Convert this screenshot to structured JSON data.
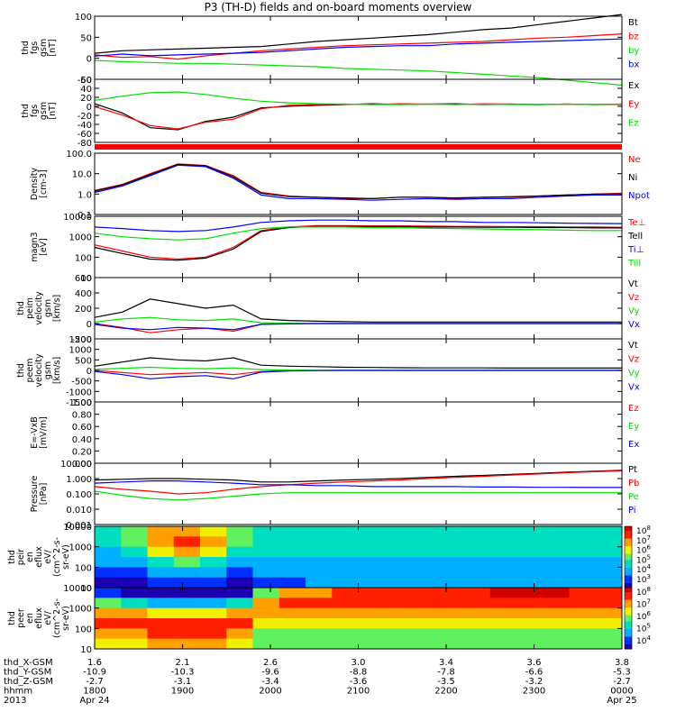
{
  "title": "P3 (TH-D) fields and on-board moments overview",
  "footer": {
    "rows": [
      {
        "label": "thd_X-GSM",
        "values": [
          "1.6",
          "2.1",
          "2.6",
          "3.0",
          "3.4",
          "3.6",
          "3.8"
        ]
      },
      {
        "label": "thd_Y-GSM",
        "values": [
          "-10.9",
          "-10.3",
          "-9.6",
          "-8.8",
          "-7.8",
          "-6.6",
          "-5.3"
        ]
      },
      {
        "label": "thd_Z-GSM",
        "values": [
          "-2.7",
          "-3.1",
          "-3.4",
          "-3.6",
          "-3.5",
          "-3.2",
          "-2.7"
        ]
      },
      {
        "label": "hhmm",
        "values": [
          "1800",
          "1900",
          "2000",
          "2100",
          "2200",
          "2300",
          "0000"
        ]
      },
      {
        "label": "2013",
        "values": [
          "Apr 24",
          "",
          "",
          "",
          "",
          "",
          "Apr 25"
        ]
      }
    ]
  },
  "colors": {
    "black": "#000000",
    "red": "#ff0000",
    "green": "#00e000",
    "blue": "#0000ff"
  },
  "chart_data": [
    {
      "type": "line",
      "ylabel": [
        "thd",
        "fgs",
        "gsm",
        "[nT]"
      ],
      "ylim": [
        -50,
        100
      ],
      "yticks": [
        "100",
        "50",
        "0",
        "-50"
      ],
      "series": [
        {
          "name": "Bt",
          "color": "black",
          "values": [
            12,
            18,
            20,
            22,
            24,
            26,
            28,
            34,
            40,
            44,
            48,
            52,
            56,
            62,
            68,
            72,
            80,
            88,
            96,
            104
          ]
        },
        {
          "name": "bz",
          "color": "red",
          "values": [
            8,
            2,
            4,
            -2,
            6,
            12,
            18,
            22,
            26,
            30,
            32,
            34,
            36,
            38,
            40,
            44,
            48,
            50,
            54,
            58
          ]
        },
        {
          "name": "by",
          "color": "green",
          "values": [
            -5,
            -8,
            -10,
            -12,
            -12,
            -14,
            -16,
            -18,
            -20,
            -24,
            -26,
            -28,
            -30,
            -34,
            -38,
            -42,
            -46,
            -52,
            -58,
            -64
          ]
        },
        {
          "name": "bx",
          "color": "blue",
          "values": [
            5,
            10,
            6,
            8,
            10,
            12,
            14,
            18,
            22,
            26,
            28,
            30,
            30,
            34,
            36,
            38,
            40,
            42,
            44,
            46
          ]
        }
      ]
    },
    {
      "type": "line",
      "ylabel": [
        "thd",
        "fgs",
        "gsm",
        "[nT]"
      ],
      "ylim": [
        -90,
        60
      ],
      "yticks": [
        "60",
        "40",
        "20",
        "0",
        "-20",
        "-40",
        "-60",
        "-80"
      ],
      "series": [
        {
          "name": "Ex",
          "color": "black",
          "values": [
            2,
            -20,
            -55,
            -60,
            -40,
            -30,
            -8,
            -4,
            -2,
            0,
            2,
            0,
            1,
            2,
            0,
            1,
            0,
            1,
            0,
            1
          ]
        },
        {
          "name": "Ey",
          "color": "red",
          "values": [
            -5,
            -25,
            -50,
            -58,
            -42,
            -35,
            -10,
            -2,
            0,
            1,
            0,
            2,
            1,
            0,
            2,
            1,
            0,
            1,
            0,
            0
          ]
        },
        {
          "name": "Ez",
          "color": "green",
          "values": [
            10,
            20,
            28,
            30,
            24,
            15,
            8,
            4,
            2,
            1,
            0,
            0,
            1,
            0,
            1,
            0,
            0,
            1,
            0,
            1
          ]
        }
      ]
    },
    {
      "type": "line",
      "ylabel": [
        "Density",
        "[cm-3]"
      ],
      "ylim": [
        0.1,
        100
      ],
      "scale": "log",
      "yticks": [
        "100.0",
        "10.0",
        "1.0",
        "0.1"
      ],
      "series": [
        {
          "name": "Ne",
          "color": "red",
          "values": [
            1.5,
            3,
            10,
            30,
            25,
            8,
            1.2,
            0.8,
            0.7,
            0.6,
            0.6,
            0.7,
            0.7,
            0.6,
            0.7,
            0.7,
            0.8,
            0.9,
            1.0,
            1.1
          ]
        },
        {
          "name": "Ni",
          "color": "black",
          "values": [
            1.4,
            2.8,
            9,
            28,
            24,
            7,
            1.1,
            0.75,
            0.7,
            0.65,
            0.6,
            0.7,
            0.7,
            0.65,
            0.7,
            0.75,
            0.8,
            0.9,
            1.0,
            1.0
          ]
        },
        {
          "name": "Npot",
          "color": "blue",
          "values": [
            1.2,
            2.5,
            8,
            26,
            22,
            6,
            0.9,
            0.6,
            0.6,
            0.55,
            0.5,
            0.55,
            0.6,
            0.55,
            0.6,
            0.6,
            0.7,
            0.8,
            0.9,
            0.9
          ]
        }
      ]
    },
    {
      "type": "line",
      "ylabel": [
        "magn3",
        "[eV]"
      ],
      "ylim": [
        10,
        10000
      ],
      "scale": "log",
      "yticks": [
        "10000",
        "1000",
        "100",
        "10"
      ],
      "series": [
        {
          "name": "Te⊥",
          "color": "red",
          "values": [
            400,
            200,
            100,
            80,
            100,
            300,
            2000,
            3000,
            3500,
            3500,
            3400,
            3400,
            3300,
            3200,
            3200,
            3100,
            3100,
            3000,
            3000,
            2900
          ]
        },
        {
          "name": "Tell",
          "color": "black",
          "values": [
            300,
            150,
            80,
            70,
            90,
            250,
            1800,
            2800,
            3200,
            3200,
            3100,
            3100,
            3000,
            3000,
            2900,
            2900,
            2800,
            2800,
            2700,
            2700
          ]
        },
        {
          "name": "Ti⊥",
          "color": "blue",
          "values": [
            3000,
            2500,
            2000,
            1800,
            2000,
            3000,
            5000,
            6000,
            6500,
            6500,
            6000,
            6000,
            5500,
            5500,
            5000,
            5000,
            4800,
            4600,
            4500,
            4400
          ]
        },
        {
          "name": "Till",
          "color": "green",
          "values": [
            1500,
            1000,
            800,
            700,
            800,
            1500,
            2500,
            3000,
            3000,
            3000,
            2800,
            2800,
            2600,
            2500,
            2400,
            2300,
            2200,
            2100,
            2000,
            2000
          ]
        }
      ]
    },
    {
      "type": "line",
      "ylabel": [
        "thd",
        "peim",
        "velocity",
        "gsm",
        "[km/s]"
      ],
      "ylim": [
        -200,
        600
      ],
      "yticks": [
        "600",
        "400",
        "200",
        "0",
        "-200"
      ],
      "series": [
        {
          "name": "Vt",
          "color": "black",
          "values": [
            80,
            150,
            320,
            260,
            200,
            240,
            60,
            40,
            30,
            25,
            20,
            20,
            20,
            20,
            20,
            20,
            20,
            20,
            20,
            20
          ]
        },
        {
          "name": "Vz",
          "color": "red",
          "values": [
            0,
            -50,
            -120,
            -80,
            -60,
            -100,
            -10,
            0,
            0,
            0,
            0,
            0,
            0,
            0,
            0,
            0,
            0,
            0,
            0,
            0
          ]
        },
        {
          "name": "Vy",
          "color": "green",
          "values": [
            20,
            60,
            80,
            50,
            40,
            60,
            10,
            5,
            0,
            0,
            0,
            0,
            0,
            0,
            0,
            0,
            0,
            0,
            0,
            0
          ]
        },
        {
          "name": "Vx",
          "color": "blue",
          "values": [
            -10,
            -60,
            -80,
            -50,
            -60,
            -80,
            -10,
            -5,
            0,
            0,
            0,
            0,
            0,
            0,
            0,
            0,
            0,
            0,
            0,
            0
          ]
        }
      ]
    },
    {
      "type": "line",
      "ylabel": [
        "thd",
        "peem",
        "velocity",
        "gsm",
        "[km/s]"
      ],
      "ylim": [
        -1500,
        1500
      ],
      "yticks": [
        "1500",
        "1000",
        "500",
        "0",
        "-500",
        "-1000",
        "-1500"
      ],
      "series": [
        {
          "name": "Vt",
          "color": "black",
          "values": [
            200,
            400,
            600,
            500,
            450,
            600,
            250,
            200,
            180,
            150,
            140,
            130,
            120,
            120,
            120,
            110,
            110,
            110,
            110,
            110
          ]
        },
        {
          "name": "Vz",
          "color": "red",
          "values": [
            0,
            -100,
            -200,
            -150,
            -100,
            -200,
            -50,
            0,
            0,
            0,
            0,
            0,
            0,
            0,
            0,
            0,
            0,
            0,
            0,
            0
          ]
        },
        {
          "name": "Vy",
          "color": "green",
          "values": [
            50,
            100,
            150,
            100,
            80,
            120,
            40,
            20,
            10,
            10,
            10,
            10,
            10,
            10,
            10,
            10,
            10,
            10,
            10,
            10
          ]
        },
        {
          "name": "Vx",
          "color": "blue",
          "values": [
            -50,
            -200,
            -400,
            -300,
            -250,
            -400,
            -80,
            -30,
            -10,
            0,
            0,
            0,
            0,
            0,
            0,
            0,
            0,
            0,
            0,
            0
          ]
        }
      ]
    },
    {
      "type": "line",
      "ylabel": [
        "E=-VxB",
        "[mV/m]"
      ],
      "ylim": [
        0,
        1
      ],
      "yticks": [
        "1.00",
        "0.80",
        "0.60",
        "0.40",
        "0.20",
        "0.00"
      ],
      "series": [
        {
          "name": "Ez",
          "color": "red",
          "values": []
        },
        {
          "name": "Ey",
          "color": "green",
          "values": []
        },
        {
          "name": "Ex",
          "color": "blue",
          "values": []
        }
      ]
    },
    {
      "type": "line",
      "ylabel": [
        "Pressure",
        "[nPa]"
      ],
      "ylim": [
        0.001,
        10
      ],
      "scale": "log",
      "yticks": [
        "10.000",
        "1.000",
        "0.100",
        "0.010",
        "0.001"
      ],
      "series": [
        {
          "name": "Pt",
          "color": "black",
          "values": [
            0.8,
            0.9,
            1.0,
            1.0,
            0.9,
            0.8,
            0.6,
            0.6,
            0.7,
            0.8,
            0.9,
            1.0,
            1.2,
            1.4,
            1.6,
            1.9,
            2.2,
            2.6,
            3.0,
            3.5
          ]
        },
        {
          "name": "Pb",
          "color": "red",
          "values": [
            0.3,
            0.2,
            0.15,
            0.1,
            0.12,
            0.2,
            0.3,
            0.4,
            0.5,
            0.6,
            0.7,
            0.8,
            1.0,
            1.2,
            1.4,
            1.7,
            2.0,
            2.4,
            2.8,
            3.2
          ]
        },
        {
          "name": "Pe",
          "color": "green",
          "values": [
            0.15,
            0.08,
            0.05,
            0.04,
            0.05,
            0.07,
            0.1,
            0.12,
            0.12,
            0.12,
            0.12,
            0.12,
            0.12,
            0.12,
            0.12,
            0.12,
            0.12,
            0.12,
            0.12,
            0.12
          ]
        },
        {
          "name": "Pi",
          "color": "blue",
          "values": [
            0.5,
            0.6,
            0.7,
            0.7,
            0.6,
            0.5,
            0.4,
            0.4,
            0.35,
            0.35,
            0.3,
            0.3,
            0.3,
            0.3,
            0.28,
            0.28,
            0.27,
            0.27,
            0.26,
            0.26
          ]
        }
      ]
    },
    {
      "type": "heatmap",
      "ylabel": [
        "thd",
        "peir",
        "en",
        "eflux",
        "eV/",
        "(cm^2-s-",
        "sr-eV)"
      ],
      "ylim": [
        10,
        10000
      ],
      "scale": "log",
      "yticks": [
        "10000",
        "1000",
        "100",
        "10"
      ],
      "colorbar": [
        "10^8",
        "10^7",
        "10^6",
        "10^5",
        "10^4",
        "10^3"
      ],
      "rows": [
        [
          3,
          4,
          6,
          6,
          5,
          4,
          3,
          3,
          3,
          3,
          3,
          3,
          3,
          3,
          3,
          3,
          3,
          3,
          3,
          3
        ],
        [
          3,
          4,
          6,
          7,
          6,
          4,
          3,
          3,
          3,
          3,
          3,
          3,
          3,
          3,
          3,
          3,
          3,
          3,
          3,
          3
        ],
        [
          2,
          3,
          5,
          6,
          5,
          3,
          3,
          3,
          3,
          3,
          3,
          3,
          3,
          3,
          3,
          3,
          3,
          3,
          3,
          3
        ],
        [
          2,
          2,
          3,
          4,
          3,
          2,
          2,
          2,
          2,
          2,
          2,
          2,
          2,
          2,
          2,
          2,
          2,
          2,
          2,
          2
        ],
        [
          1,
          1,
          2,
          2,
          2,
          1,
          2,
          2,
          2,
          2,
          2,
          2,
          2,
          2,
          2,
          2,
          2,
          2,
          2,
          2
        ],
        [
          0,
          0,
          1,
          1,
          1,
          0,
          1,
          1,
          2,
          2,
          2,
          2,
          2,
          2,
          2,
          2,
          2,
          2,
          2,
          2
        ]
      ]
    },
    {
      "type": "heatmap",
      "ylabel": [
        "thd",
        "peer",
        "en",
        "eflux",
        "eV/",
        "(cm^2-s-",
        "sr-eV)"
      ],
      "ylim": [
        10,
        10000
      ],
      "scale": "log",
      "yticks": [
        "10000",
        "1000",
        "100",
        "10"
      ],
      "colorbar": [
        "10^8",
        "10^7",
        "10^6",
        "10^5",
        "10^4"
      ],
      "rows": [
        [
          1,
          0,
          0,
          0,
          0,
          0,
          4,
          6,
          6,
          7,
          7,
          7,
          7,
          7,
          7,
          8,
          8,
          8,
          7,
          7
        ],
        [
          4,
          3,
          2,
          2,
          2,
          3,
          6,
          7,
          7,
          7,
          7,
          7,
          7,
          7,
          7,
          7,
          7,
          7,
          7,
          7
        ],
        [
          6,
          6,
          5,
          5,
          5,
          6,
          6,
          6,
          6,
          6,
          6,
          6,
          6,
          6,
          6,
          6,
          6,
          6,
          6,
          6
        ],
        [
          7,
          7,
          7,
          7,
          7,
          7,
          5,
          5,
          5,
          5,
          5,
          5,
          5,
          5,
          5,
          5,
          5,
          5,
          5,
          5
        ],
        [
          6,
          6,
          7,
          7,
          7,
          6,
          4,
          4,
          4,
          4,
          4,
          4,
          4,
          4,
          4,
          4,
          4,
          4,
          4,
          4
        ],
        [
          5,
          5,
          6,
          6,
          6,
          5,
          4,
          4,
          4,
          4,
          4,
          4,
          4,
          4,
          4,
          4,
          4,
          4,
          4,
          4
        ]
      ]
    }
  ]
}
